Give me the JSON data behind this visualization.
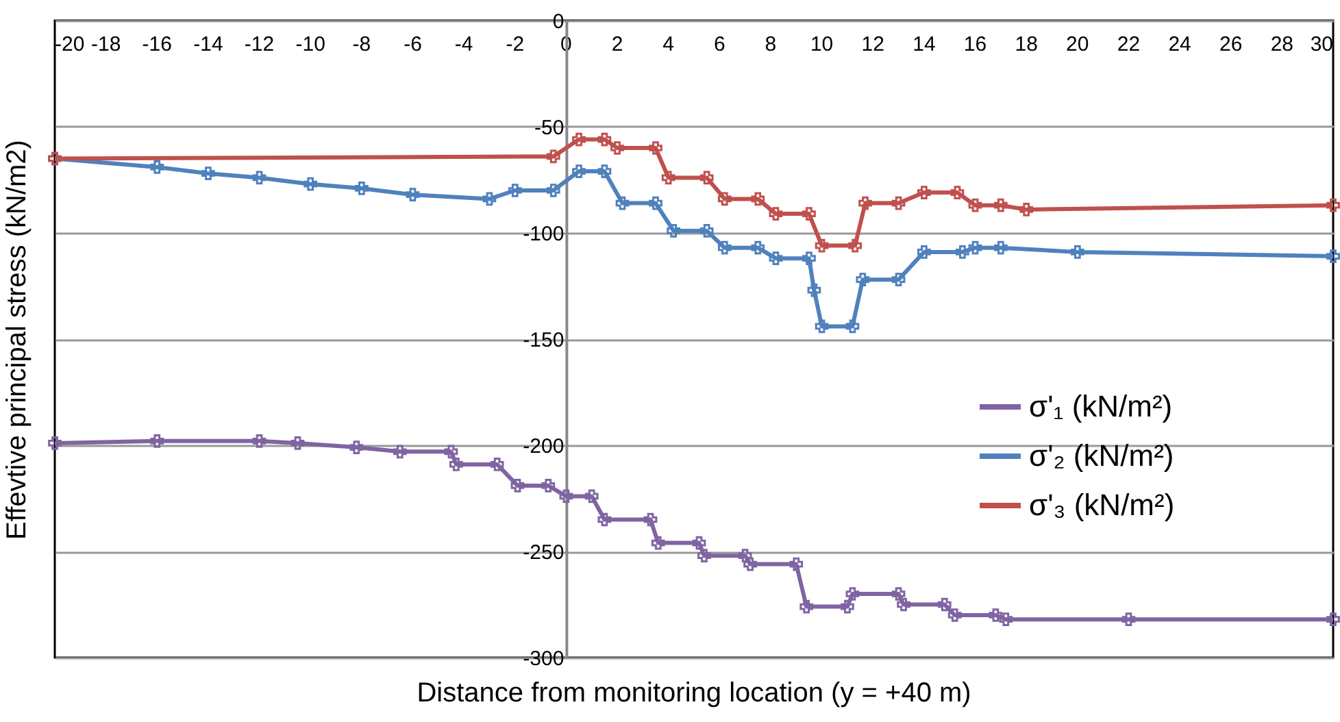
{
  "chart_data": {
    "type": "line",
    "xlabel": "Distance from monitoring location (y = +40 m)",
    "ylabel": "Effevtive principal stress (kN/m2)",
    "xlim": [
      -20,
      30
    ],
    "xticks": [
      -20,
      -18,
      -16,
      -14,
      -12,
      -10,
      -8,
      -6,
      -4,
      -2,
      0,
      2,
      4,
      6,
      8,
      10,
      12,
      14,
      16,
      18,
      20,
      22,
      24,
      26,
      28,
      30
    ],
    "ylim": [
      -300,
      0
    ],
    "yticks": [
      -300,
      -250,
      -200,
      -150,
      -100,
      -50,
      0
    ],
    "grid": "y",
    "legend": "right",
    "marker": "cross",
    "series": [
      {
        "name": "σ'₁ (kN/m²)",
        "color": "#8064a2",
        "x": [
          -20,
          -16,
          -12,
          -10.5,
          -8.2,
          -6.5,
          -4.5,
          -4.3,
          -2.7,
          -1.9,
          -0.7,
          0,
          1,
          1.5,
          3.3,
          3.6,
          5.2,
          5.4,
          7,
          7.2,
          9,
          9.4,
          11,
          11.2,
          13,
          13.2,
          14.8,
          15.2,
          16.8,
          17.2,
          22,
          30
        ],
        "values": [
          -199,
          -198,
          -198,
          -199,
          -201,
          -203,
          -203,
          -209,
          -209,
          -219,
          -219,
          -224,
          -224,
          -235,
          -235,
          -246,
          -246,
          -252,
          -252,
          -256,
          -256,
          -276,
          -276,
          -270,
          -270,
          -275,
          -275,
          -280,
          -280,
          -282,
          -282,
          -282
        ]
      },
      {
        "name": "σ'₂ (kN/m²)",
        "color": "#4f81bd",
        "x": [
          -20,
          -16,
          -14,
          -12,
          -10,
          -8,
          -6,
          -3,
          -2,
          -0.5,
          0.5,
          1.5,
          2.2,
          3.5,
          4.2,
          5.5,
          6.2,
          7.5,
          8.2,
          9.5,
          9.7,
          10,
          11.2,
          11.6,
          13,
          14,
          15.5,
          16,
          17,
          20,
          30
        ],
        "values": [
          -65,
          -69,
          -72,
          -74,
          -77,
          -79,
          -82,
          -84,
          -80,
          -80,
          -71,
          -71,
          -86,
          -86,
          -99,
          -99,
          -107,
          -107,
          -112,
          -112,
          -127,
          -144,
          -144,
          -122,
          -122,
          -109,
          -109,
          -107,
          -107,
          -109,
          -111
        ]
      },
      {
        "name": "σ'₃ (kN/m²)",
        "color": "#c0504d",
        "x": [
          -20,
          -0.5,
          0.5,
          1.5,
          2,
          3.5,
          4,
          5.5,
          6.2,
          7.5,
          8.2,
          9.5,
          10,
          11.3,
          11.7,
          13,
          14,
          15.3,
          16,
          17,
          18,
          30
        ],
        "values": [
          -65,
          -64,
          -56,
          -56,
          -60,
          -60,
          -74,
          -74,
          -84,
          -84,
          -91,
          -91,
          -106,
          -106,
          -86,
          -86,
          -81,
          -81,
          -87,
          -87,
          -89,
          -87
        ]
      }
    ]
  }
}
